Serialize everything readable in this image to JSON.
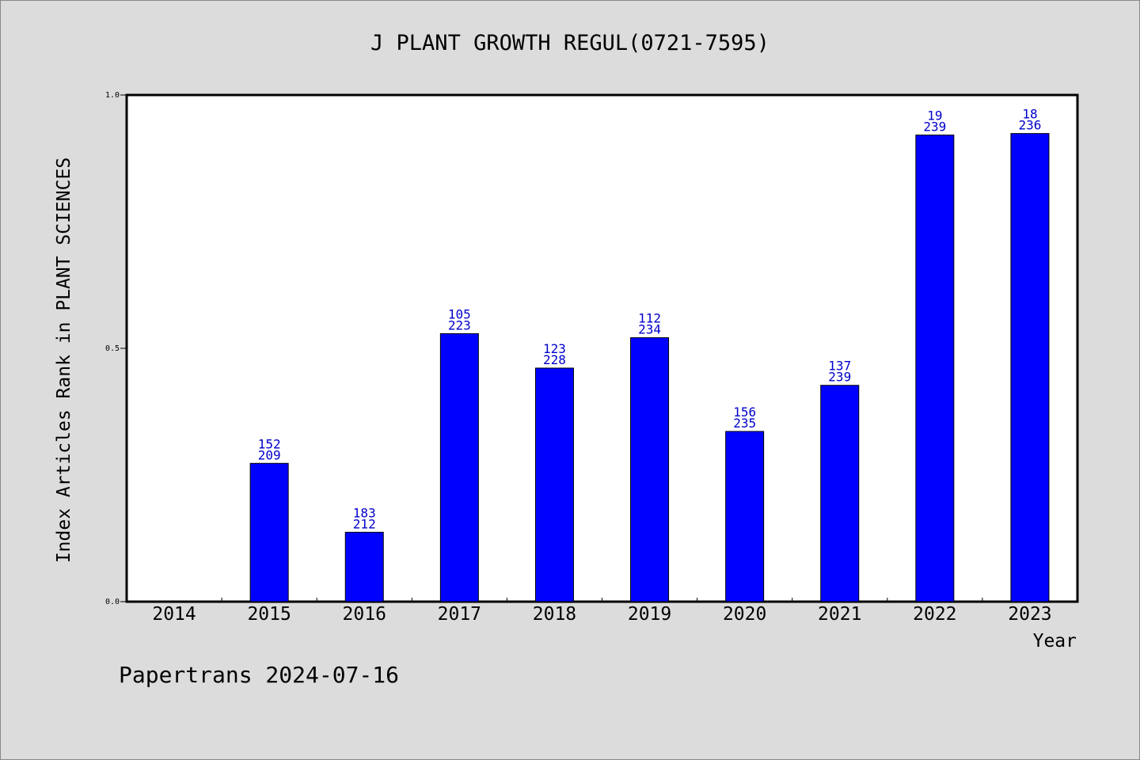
{
  "chart_data": {
    "type": "bar",
    "title": "J PLANT GROWTH REGUL(0721-7595)",
    "xlabel": "Year",
    "ylabel": "Index Articles Rank in PLANT SCIENCES",
    "ylim": [
      0.0,
      1.0
    ],
    "yticks": [
      "0.0",
      "0.5",
      "1.0"
    ],
    "grid": false,
    "categories": [
      "2014",
      "2015",
      "2016",
      "2017",
      "2018",
      "2019",
      "2020",
      "2021",
      "2022",
      "2023"
    ],
    "values": [
      null,
      0.273,
      0.137,
      0.529,
      0.461,
      0.521,
      0.336,
      0.427,
      0.921,
      0.924
    ],
    "rank_labels": [
      null,
      "152",
      "183",
      "105",
      "123",
      "112",
      "156",
      "137",
      "19",
      "18"
    ],
    "total_labels": [
      null,
      "209",
      "212",
      "223",
      "228",
      "234",
      "235",
      "239",
      "239",
      "236"
    ],
    "bar_color": "#0000ff",
    "label_color": "#0000cc"
  },
  "footer": "Papertrans 2024-07-16"
}
